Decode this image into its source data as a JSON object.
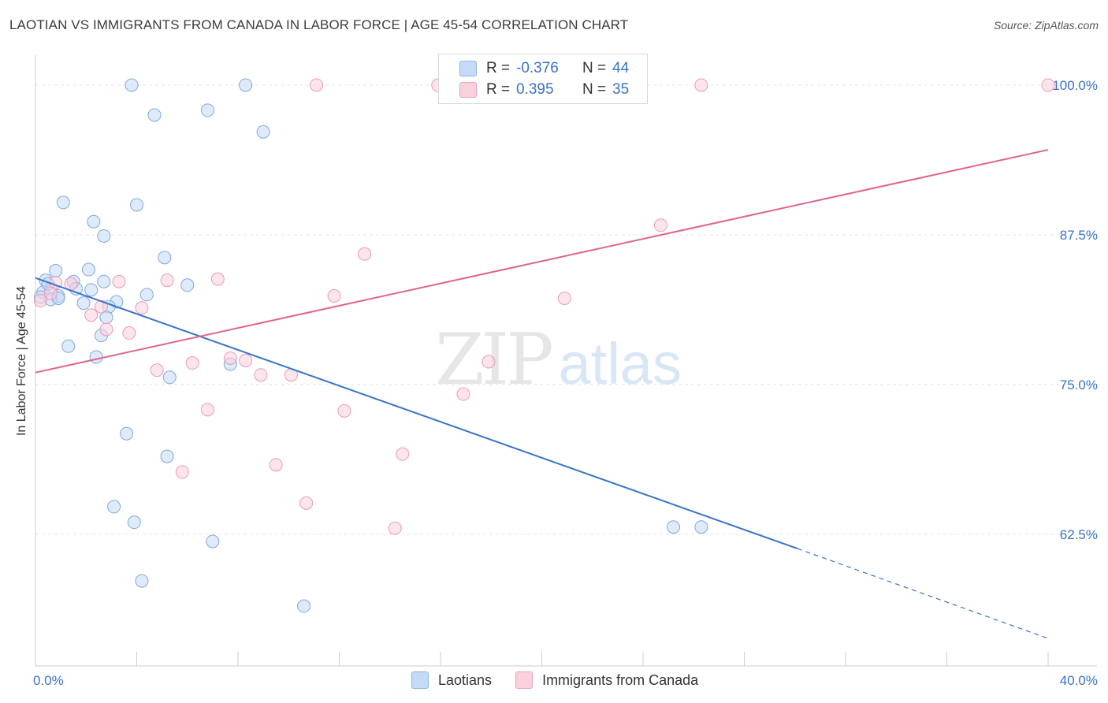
{
  "title": "LAOTIAN VS IMMIGRANTS FROM CANADA IN LABOR FORCE | AGE 45-54 CORRELATION CHART",
  "source": "Source: ZipAtlas.com",
  "watermark": {
    "zip": "ZIP",
    "atlas": "atlas"
  },
  "legend": {
    "r_label": "R =",
    "n_label": "N =",
    "rows": [
      {
        "r": "-0.376",
        "n": "44",
        "color": "#b9d2f2"
      },
      {
        "r": "0.395",
        "n": "35",
        "color": "#f9c7d6"
      }
    ]
  },
  "bottom_legend": [
    {
      "label": "Laotians",
      "color": "#c4daf6"
    },
    {
      "label": "Immigrants from Canada",
      "color": "#fbd0dd"
    }
  ],
  "chart_data": {
    "type": "scatter",
    "title": "LAOTIAN VS IMMIGRANTS FROM CANADA IN LABOR FORCE | AGE 45-54 CORRELATION CHART",
    "xlabel": "",
    "ylabel": "In Labor Force | Age 45-54",
    "xlim": [
      0,
      40
    ],
    "ylim": [
      51.5,
      102.5
    ],
    "x_tick_labels": [
      "0.0%",
      "40.0%"
    ],
    "y_ticks": [
      62.5,
      75.0,
      87.5,
      100.0
    ],
    "y_tick_labels": [
      "62.5%",
      "75.0%",
      "87.5%",
      "100.0%"
    ],
    "grid": true,
    "colors": {
      "laotians": "#3a73c8",
      "canada": "#e0648c"
    },
    "series": [
      {
        "name": "Laotians",
        "points": [
          [
            3.8,
            100.0
          ],
          [
            8.3,
            100.0
          ],
          [
            4.7,
            97.5
          ],
          [
            6.8,
            97.9
          ],
          [
            9.0,
            96.1
          ],
          [
            1.1,
            90.2
          ],
          [
            4.0,
            90.0
          ],
          [
            2.3,
            88.6
          ],
          [
            2.7,
            87.4
          ],
          [
            5.1,
            85.6
          ],
          [
            0.8,
            84.5
          ],
          [
            2.1,
            84.6
          ],
          [
            0.4,
            83.7
          ],
          [
            1.5,
            83.6
          ],
          [
            2.7,
            83.6
          ],
          [
            6.0,
            83.3
          ],
          [
            0.6,
            83.0
          ],
          [
            1.6,
            83.0
          ],
          [
            2.2,
            82.9
          ],
          [
            0.3,
            82.7
          ],
          [
            0.9,
            82.4
          ],
          [
            0.6,
            82.1
          ],
          [
            0.9,
            82.2
          ],
          [
            4.4,
            82.5
          ],
          [
            3.2,
            81.9
          ],
          [
            1.9,
            81.8
          ],
          [
            2.9,
            81.5
          ],
          [
            2.8,
            80.6
          ],
          [
            2.6,
            79.1
          ],
          [
            1.3,
            78.2
          ],
          [
            2.4,
            77.3
          ],
          [
            7.7,
            76.7
          ],
          [
            5.3,
            75.6
          ],
          [
            3.6,
            70.9
          ],
          [
            5.2,
            69.0
          ],
          [
            3.1,
            64.8
          ],
          [
            3.9,
            63.5
          ],
          [
            7.0,
            61.9
          ],
          [
            4.2,
            58.6
          ],
          [
            10.6,
            56.5
          ],
          [
            25.2,
            63.1
          ],
          [
            26.3,
            63.1
          ],
          [
            0.2,
            82.3
          ],
          [
            0.5,
            83.4
          ]
        ],
        "trend": {
          "x": [
            0,
            30.1
          ],
          "y": [
            83.9,
            61.3
          ]
        },
        "trend_extension": {
          "x": [
            30.1,
            40
          ],
          "y": [
            61.3,
            53.8
          ]
        }
      },
      {
        "name": "Immigrants from Canada",
        "points": [
          [
            11.1,
            100.0
          ],
          [
            15.9,
            100.0
          ],
          [
            26.3,
            100.0
          ],
          [
            40.0,
            100.0
          ],
          [
            24.7,
            88.3
          ],
          [
            13.0,
            85.9
          ],
          [
            3.3,
            83.6
          ],
          [
            5.2,
            83.7
          ],
          [
            7.2,
            83.8
          ],
          [
            0.8,
            83.5
          ],
          [
            1.4,
            83.4
          ],
          [
            11.8,
            82.4
          ],
          [
            20.9,
            82.2
          ],
          [
            2.6,
            81.5
          ],
          [
            4.2,
            81.4
          ],
          [
            2.2,
            80.8
          ],
          [
            2.8,
            79.6
          ],
          [
            3.7,
            79.3
          ],
          [
            7.7,
            77.2
          ],
          [
            8.3,
            77.0
          ],
          [
            6.2,
            76.8
          ],
          [
            17.9,
            76.9
          ],
          [
            4.8,
            76.2
          ],
          [
            8.9,
            75.8
          ],
          [
            10.1,
            75.8
          ],
          [
            16.9,
            74.2
          ],
          [
            6.8,
            72.9
          ],
          [
            12.2,
            72.8
          ],
          [
            14.5,
            69.2
          ],
          [
            5.8,
            67.7
          ],
          [
            9.5,
            68.3
          ],
          [
            10.7,
            65.1
          ],
          [
            14.2,
            63.0
          ],
          [
            0.2,
            82.0
          ],
          [
            0.6,
            82.6
          ]
        ],
        "trend": {
          "x": [
            0,
            40
          ],
          "y": [
            76.0,
            94.6
          ]
        }
      }
    ]
  }
}
